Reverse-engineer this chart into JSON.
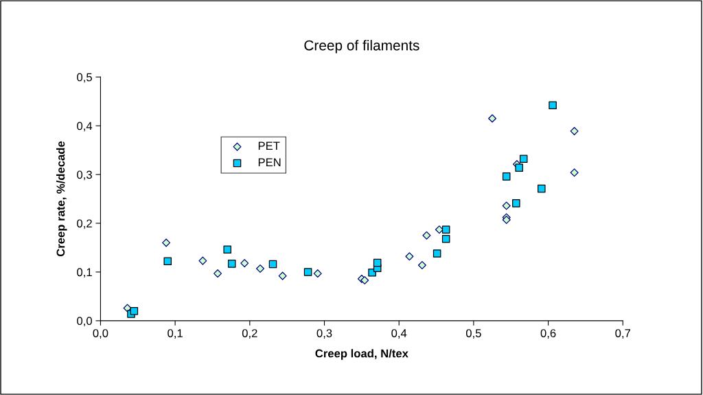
{
  "chart_data": {
    "type": "scatter",
    "title": "Creep of filaments",
    "xlabel": "Creep load, N/tex",
    "ylabel": "Creep rate, %/decade",
    "xlim": [
      0,
      0.7
    ],
    "ylim": [
      0,
      0.5
    ],
    "xticks": [
      {
        "value": 0,
        "label": "0,0"
      },
      {
        "value": 0.1,
        "label": "0,1"
      },
      {
        "value": 0.2,
        "label": "0,2"
      },
      {
        "value": 0.3,
        "label": "0,3"
      },
      {
        "value": 0.4,
        "label": "0,4"
      },
      {
        "value": 0.5,
        "label": "0,5"
      },
      {
        "value": 0.6,
        "label": "0,6"
      },
      {
        "value": 0.7,
        "label": "0,7"
      }
    ],
    "yticks": [
      {
        "value": 0,
        "label": "0,0"
      },
      {
        "value": 0.1,
        "label": "0,1"
      },
      {
        "value": 0.2,
        "label": "0,2"
      },
      {
        "value": 0.3,
        "label": "0,3"
      },
      {
        "value": 0.4,
        "label": "0,4"
      },
      {
        "value": 0.5,
        "label": "0,5"
      }
    ],
    "grid": false,
    "legend": "left",
    "series": [
      {
        "name": "PET",
        "color": "#ccffcc",
        "marker": "diamond",
        "x": [
          0.036,
          0.088,
          0.137,
          0.157,
          0.193,
          0.214,
          0.244,
          0.291,
          0.35,
          0.354,
          0.414,
          0.431,
          0.437,
          0.454,
          0.525,
          0.544,
          0.544,
          0.544,
          0.558,
          0.635,
          0.635
        ],
        "values": [
          0.026,
          0.16,
          0.123,
          0.097,
          0.118,
          0.107,
          0.092,
          0.097,
          0.086,
          0.083,
          0.132,
          0.114,
          0.175,
          0.187,
          0.415,
          0.236,
          0.212,
          0.207,
          0.321,
          0.389,
          0.304
        ]
      },
      {
        "name": "PEN",
        "color": "#00ccff",
        "marker": "square",
        "x": [
          0.041,
          0.045,
          0.09,
          0.17,
          0.176,
          0.231,
          0.278,
          0.364,
          0.371,
          0.371,
          0.451,
          0.463,
          0.463,
          0.544,
          0.557,
          0.561,
          0.567,
          0.591,
          0.606
        ],
        "values": [
          0.014,
          0.02,
          0.122,
          0.146,
          0.117,
          0.116,
          0.1,
          0.099,
          0.108,
          0.119,
          0.138,
          0.187,
          0.168,
          0.296,
          0.241,
          0.314,
          0.332,
          0.271,
          0.442
        ]
      }
    ]
  }
}
